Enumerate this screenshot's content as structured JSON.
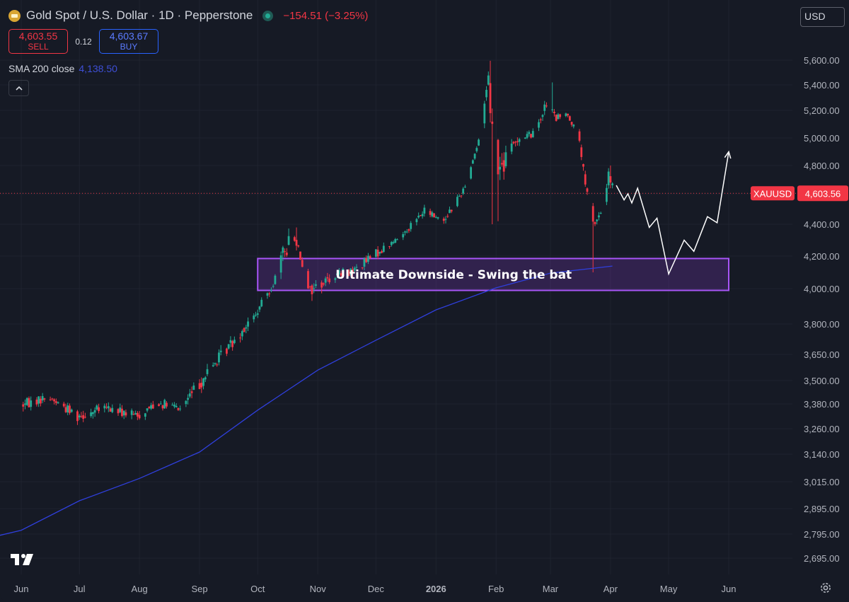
{
  "header": {
    "symbol_title": "Gold Spot / U.S. Dollar · 1D · Pepperstone",
    "change": "−154.51 (−3.25%)",
    "logo_icon": "gold-bars-icon",
    "status_icon": "market-status-dot-icon"
  },
  "trade": {
    "sell_price": "4,603.55",
    "sell_label": "SELL",
    "spread": "0.12",
    "buy_price": "4,603.67",
    "buy_label": "BUY"
  },
  "indicator": {
    "label": "SMA 200 close",
    "value": "4,138.50"
  },
  "toolbar": {
    "collapse_icon": "chevron-up-icon",
    "currency": "USD",
    "brand_icon": "tradingview-logo-icon",
    "settings_icon": "gear-icon"
  },
  "colors": {
    "up": "#22ab94",
    "down": "#f23645",
    "sma": "#2f3fdc",
    "zone": "#a855f7",
    "arrow": "#ffffff",
    "background": "#161a25"
  },
  "chart_data": {
    "type": "candlestick",
    "y_ticks": [
      "5,600.00",
      "5,400.00",
      "5,200.00",
      "5,000.00",
      "4,800.00",
      "4,600.00",
      "4,400.00",
      "4,200.00",
      "4,000.00",
      "3,800.00",
      "3,650.00",
      "3,500.00",
      "3,380.00",
      "3,260.00",
      "3,140.00",
      "3,015.00",
      "2,895.00",
      "2,795.00",
      "2,695.00"
    ],
    "x_ticks": [
      "Jun",
      "Jul",
      "Aug",
      "Sep",
      "Oct",
      "Nov",
      "Dec",
      "2026",
      "Feb",
      "Mar",
      "Apr",
      "May",
      "Jun"
    ],
    "last_price": {
      "symbol": "XAUUSD",
      "value": 4603.56,
      "text": "4,603.56"
    },
    "zone": {
      "label": "Ultimate Downside - Swing the bat",
      "low": 3990,
      "high": 4185,
      "from": "2025-10-01",
      "to": "2026-06-01"
    },
    "sma200": {
      "name": "SMA 200 close",
      "points": [
        [
          "2025-06-01",
          2810
        ],
        [
          "2025-07-01",
          2930
        ],
        [
          "2025-08-01",
          3030
        ],
        [
          "2025-09-01",
          3150
        ],
        [
          "2025-10-01",
          3350
        ],
        [
          "2025-11-01",
          3560
        ],
        [
          "2025-12-01",
          3720
        ],
        [
          "2026-01-01",
          3880
        ],
        [
          "2026-02-01",
          4005
        ],
        [
          "2026-03-01",
          4095
        ],
        [
          "2026-04-02",
          4138.5
        ]
      ]
    },
    "anchors": [
      [
        "2025-06-01",
        3340,
        3410
      ],
      [
        "2025-06-15",
        3390,
        3440
      ],
      [
        "2025-06-30",
        3290,
        3360
      ],
      [
        "2025-07-15",
        3330,
        3390
      ],
      [
        "2025-07-31",
        3290,
        3350
      ],
      [
        "2025-08-10",
        3360,
        3420
      ],
      [
        "2025-08-22",
        3330,
        3380
      ],
      [
        "2025-09-01",
        3440,
        3540
      ],
      [
        "2025-09-15",
        3640,
        3720
      ],
      [
        "2025-09-30",
        3820,
        3880
      ],
      [
        "2025-10-09",
        4000,
        4070
      ],
      [
        "2025-10-17",
        4200,
        4400
      ],
      [
        "2025-10-21",
        4250,
        4350
      ],
      [
        "2025-10-28",
        3930,
        4050
      ],
      [
        "2025-11-10",
        4050,
        4120
      ],
      [
        "2025-11-20",
        4080,
        4150
      ],
      [
        "2025-12-01",
        4180,
        4250
      ],
      [
        "2025-12-12",
        4280,
        4330
      ],
      [
        "2025-12-26",
        4450,
        4520
      ],
      [
        "2026-01-05",
        4390,
        4470
      ],
      [
        "2026-01-15",
        4600,
        4650
      ],
      [
        "2026-01-23",
        4950,
        5000
      ],
      [
        "2026-01-28",
        5400,
        5550
      ],
      [
        "2026-01-30",
        4900,
        5200
      ],
      [
        "2026-02-03",
        4650,
        4880
      ],
      [
        "2026-02-12",
        4950,
        5050
      ],
      [
        "2026-02-20",
        5000,
        5060
      ],
      [
        "2026-02-27",
        5200,
        5300
      ],
      [
        "2026-03-04",
        5100,
        5180
      ],
      [
        "2026-03-10",
        5150,
        5200
      ],
      [
        "2026-03-16",
        4950,
        5010
      ],
      [
        "2026-03-19",
        4600,
        4700
      ],
      [
        "2026-03-23",
        4350,
        4450
      ],
      [
        "2026-03-27",
        4450,
        4500
      ],
      [
        "2026-03-31",
        4650,
        4780
      ],
      [
        "2026-04-02",
        4600,
        4700
      ]
    ],
    "projection": [
      [
        "2026-04-04",
        4660
      ],
      [
        "2026-04-08",
        4560
      ],
      [
        "2026-04-10",
        4600
      ],
      [
        "2026-04-12",
        4540
      ],
      [
        "2026-04-15",
        4640
      ],
      [
        "2026-04-21",
        4380
      ],
      [
        "2026-04-25",
        4440
      ],
      [
        "2026-05-01",
        4090
      ],
      [
        "2026-05-09",
        4300
      ],
      [
        "2026-05-14",
        4230
      ],
      [
        "2026-05-21",
        4450
      ],
      [
        "2026-05-26",
        4410
      ],
      [
        "2026-06-01",
        4900
      ]
    ]
  }
}
